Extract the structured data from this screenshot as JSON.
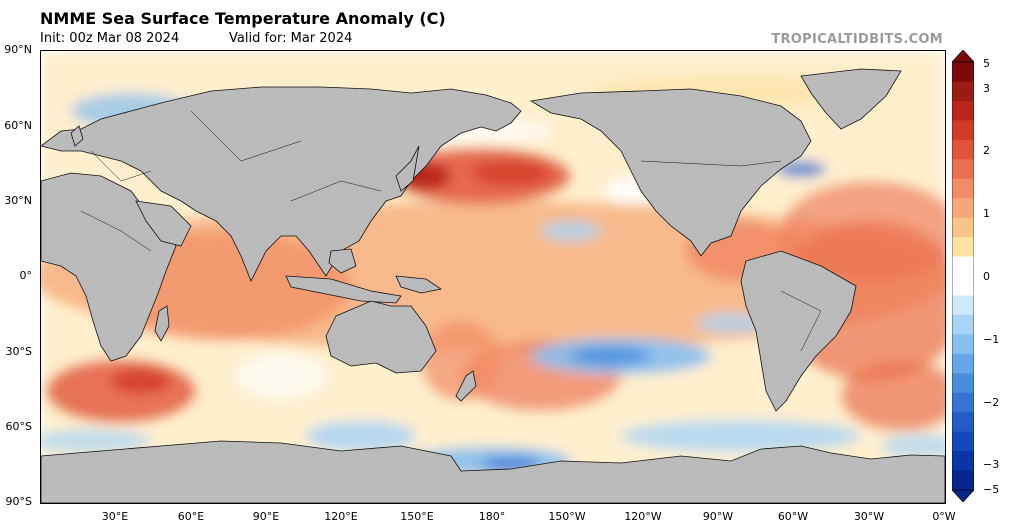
{
  "title": "NMME Sea Surface Temperature Anomaly (C)",
  "init": "Init: 00z Mar 08 2024",
  "valid": "Valid for: Mar 2024",
  "credit": "TROPICALTIDBITS.COM",
  "lat_labels": [
    "90°N",
    "60°N",
    "30°N",
    "0°",
    "30°S",
    "60°S",
    "90°S"
  ],
  "lon_labels": [
    "30°E",
    "60°E",
    "90°E",
    "120°E",
    "150°E",
    "180°",
    "150°W",
    "120°W",
    "90°W",
    "60°W",
    "30°W",
    "0°W"
  ],
  "colorbar": {
    "labels": [
      "5",
      "3",
      "2",
      "1",
      "0",
      "−1",
      "−2",
      "−3",
      "−5"
    ],
    "colors": [
      "#7a0a0a",
      "#9a1c14",
      "#b8261a",
      "#d23a28",
      "#e2543a",
      "#ec7050",
      "#f28c64",
      "#f6a878",
      "#f9c488",
      "#fde2a4",
      "#ffffff",
      "#ffffff",
      "#cfe8fa",
      "#a8d4f6",
      "#86bff0",
      "#64a6e8",
      "#4a8ee0",
      "#3674d4",
      "#235cc8",
      "#1446bc",
      "#0a34a8",
      "#06268e"
    ]
  },
  "colors": {
    "land": "#bbbbbb",
    "warm": "#f6a878",
    "cool": "#86bff0"
  }
}
